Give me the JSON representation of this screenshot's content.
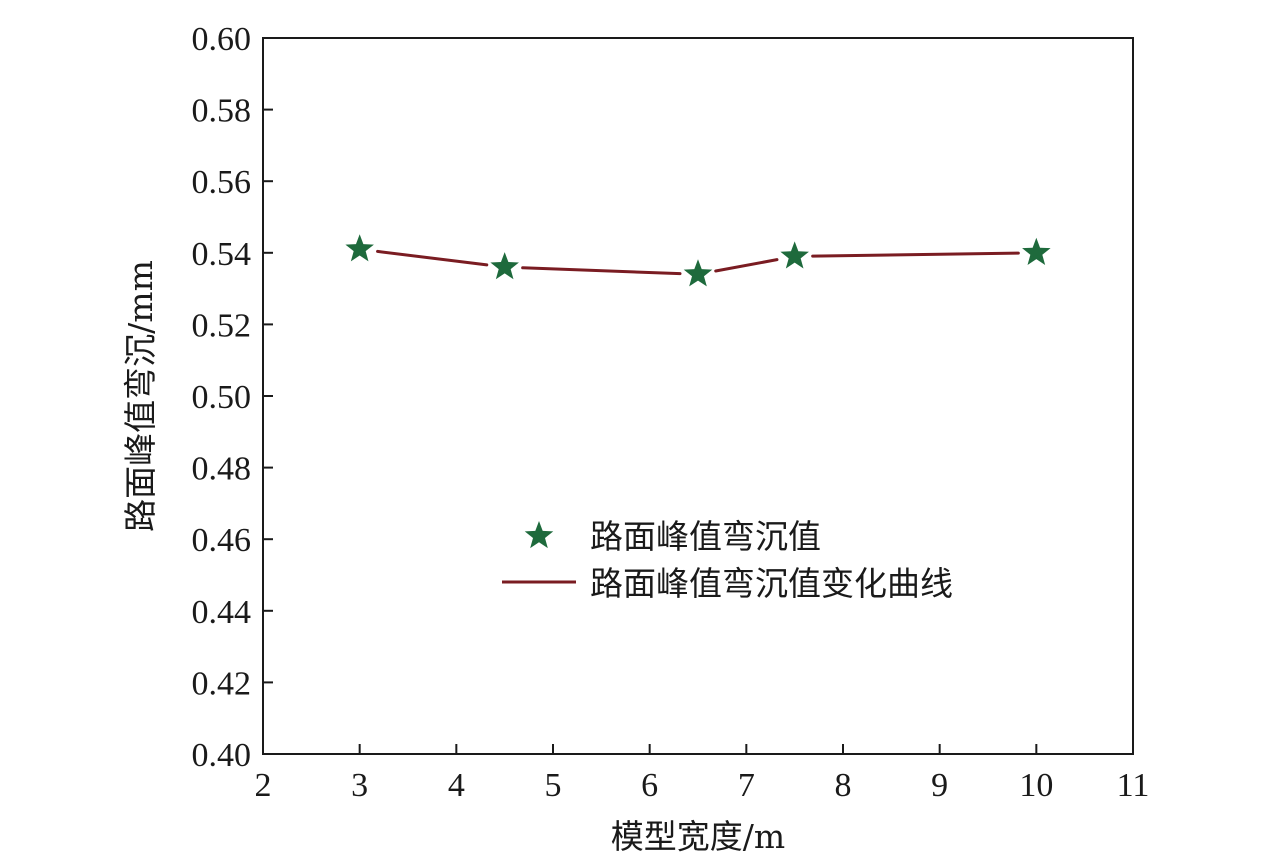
{
  "chart_data": {
    "type": "line",
    "xlabel": "模型宽度/m",
    "ylabel": "路面峰值弯沉/mm",
    "xlim": [
      2,
      11
    ],
    "ylim": [
      0.4,
      0.6
    ],
    "xticks": [
      "2",
      "3",
      "4",
      "5",
      "6",
      "7",
      "8",
      "9",
      "10",
      "11"
    ],
    "yticks": [
      "0.40",
      "0.42",
      "0.44",
      "0.46",
      "0.48",
      "0.50",
      "0.52",
      "0.54",
      "0.56",
      "0.58",
      "0.60"
    ],
    "grid": false,
    "legend_position": "center-right",
    "series": [
      {
        "name": "路面峰值弯沉值",
        "kind": "scatter",
        "marker": "star",
        "color": "#1e6a3c",
        "x": [
          3,
          4.5,
          6.5,
          7.5,
          10
        ],
        "y": [
          0.541,
          0.536,
          0.534,
          0.539,
          0.54
        ]
      },
      {
        "name": "路面峰值弯沉值变化曲线",
        "kind": "line",
        "color": "#7a1c22",
        "x": [
          3,
          4.5,
          6.5,
          7.5,
          10
        ],
        "y": [
          0.541,
          0.536,
          0.534,
          0.539,
          0.54
        ]
      }
    ]
  }
}
